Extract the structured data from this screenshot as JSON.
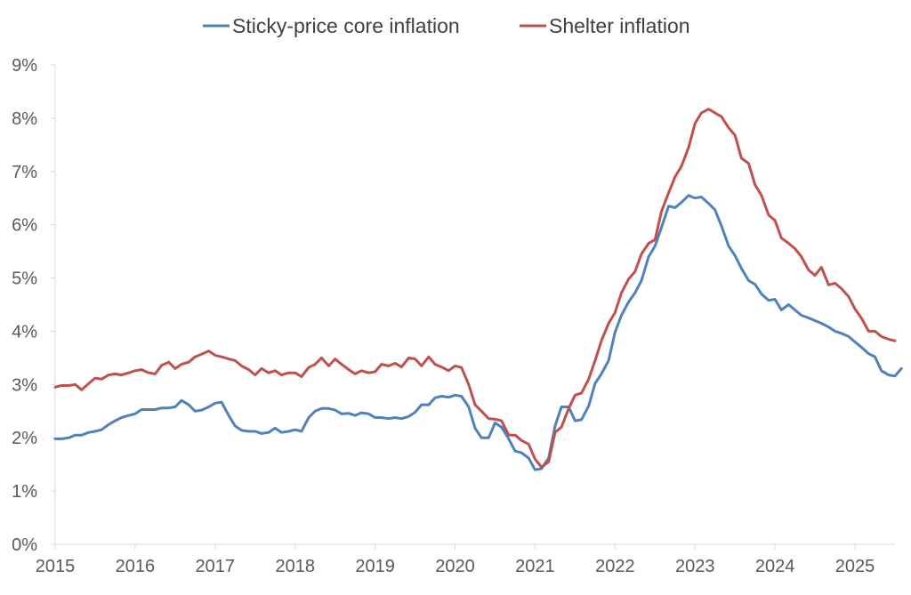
{
  "chart_data": {
    "type": "line",
    "title": "",
    "xlabel": "",
    "ylabel": "",
    "xlim": [
      2015.0,
      2025.5
    ],
    "ylim": [
      0,
      9
    ],
    "grid": false,
    "legend_position": "top-center",
    "x_ticks": [
      "2015",
      "2016",
      "2017",
      "2018",
      "2019",
      "2020",
      "2021",
      "2022",
      "2023",
      "2024",
      "2025"
    ],
    "y_ticks": [
      "0%",
      "1%",
      "2%",
      "3%",
      "4%",
      "5%",
      "6%",
      "7%",
      "8%",
      "9%"
    ],
    "series": [
      {
        "name": "Sticky-price core inflation",
        "color": "#4f81bd",
        "points": [
          [
            2015.0,
            1.98
          ],
          [
            2015.08,
            1.98
          ],
          [
            2015.17,
            2.0
          ],
          [
            2015.25,
            2.05
          ],
          [
            2015.33,
            2.05
          ],
          [
            2015.42,
            2.1
          ],
          [
            2015.5,
            2.12
          ],
          [
            2015.58,
            2.15
          ],
          [
            2015.67,
            2.25
          ],
          [
            2015.75,
            2.32
          ],
          [
            2015.83,
            2.38
          ],
          [
            2015.92,
            2.42
          ],
          [
            2016.0,
            2.45
          ],
          [
            2016.08,
            2.53
          ],
          [
            2016.17,
            2.53
          ],
          [
            2016.25,
            2.53
          ],
          [
            2016.33,
            2.56
          ],
          [
            2016.42,
            2.56
          ],
          [
            2016.5,
            2.58
          ],
          [
            2016.58,
            2.7
          ],
          [
            2016.67,
            2.62
          ],
          [
            2016.75,
            2.5
          ],
          [
            2016.83,
            2.52
          ],
          [
            2016.92,
            2.58
          ],
          [
            2017.0,
            2.65
          ],
          [
            2017.08,
            2.67
          ],
          [
            2017.17,
            2.42
          ],
          [
            2017.25,
            2.22
          ],
          [
            2017.33,
            2.14
          ],
          [
            2017.42,
            2.12
          ],
          [
            2017.5,
            2.12
          ],
          [
            2017.58,
            2.08
          ],
          [
            2017.67,
            2.1
          ],
          [
            2017.75,
            2.18
          ],
          [
            2017.83,
            2.1
          ],
          [
            2017.92,
            2.12
          ],
          [
            2018.0,
            2.15
          ],
          [
            2018.08,
            2.12
          ],
          [
            2018.17,
            2.38
          ],
          [
            2018.25,
            2.5
          ],
          [
            2018.33,
            2.55
          ],
          [
            2018.42,
            2.55
          ],
          [
            2018.5,
            2.52
          ],
          [
            2018.58,
            2.45
          ],
          [
            2018.67,
            2.46
          ],
          [
            2018.75,
            2.42
          ],
          [
            2018.83,
            2.47
          ],
          [
            2018.92,
            2.45
          ],
          [
            2019.0,
            2.38
          ],
          [
            2019.08,
            2.38
          ],
          [
            2019.17,
            2.36
          ],
          [
            2019.25,
            2.38
          ],
          [
            2019.33,
            2.36
          ],
          [
            2019.42,
            2.4
          ],
          [
            2019.5,
            2.48
          ],
          [
            2019.58,
            2.62
          ],
          [
            2019.67,
            2.62
          ],
          [
            2019.75,
            2.75
          ],
          [
            2019.83,
            2.78
          ],
          [
            2019.92,
            2.76
          ],
          [
            2020.0,
            2.8
          ],
          [
            2020.08,
            2.78
          ],
          [
            2020.17,
            2.58
          ],
          [
            2020.25,
            2.18
          ],
          [
            2020.33,
            2.0
          ],
          [
            2020.42,
            2.0
          ],
          [
            2020.5,
            2.28
          ],
          [
            2020.58,
            2.2
          ],
          [
            2020.67,
            1.98
          ],
          [
            2020.75,
            1.75
          ],
          [
            2020.83,
            1.72
          ],
          [
            2020.92,
            1.62
          ],
          [
            2021.0,
            1.4
          ],
          [
            2021.08,
            1.42
          ],
          [
            2021.17,
            1.62
          ],
          [
            2021.25,
            2.22
          ],
          [
            2021.33,
            2.58
          ],
          [
            2021.42,
            2.58
          ],
          [
            2021.5,
            2.32
          ],
          [
            2021.58,
            2.34
          ],
          [
            2021.67,
            2.6
          ],
          [
            2021.75,
            3.02
          ],
          [
            2021.83,
            3.2
          ],
          [
            2021.92,
            3.45
          ],
          [
            2022.0,
            3.98
          ],
          [
            2022.08,
            4.3
          ],
          [
            2022.17,
            4.55
          ],
          [
            2022.25,
            4.72
          ],
          [
            2022.33,
            4.95
          ],
          [
            2022.42,
            5.4
          ],
          [
            2022.5,
            5.6
          ],
          [
            2022.58,
            5.95
          ],
          [
            2022.67,
            6.35
          ],
          [
            2022.75,
            6.32
          ],
          [
            2022.83,
            6.42
          ],
          [
            2022.92,
            6.55
          ],
          [
            2023.0,
            6.5
          ],
          [
            2023.08,
            6.52
          ],
          [
            2023.17,
            6.4
          ],
          [
            2023.25,
            6.28
          ],
          [
            2023.33,
            5.98
          ],
          [
            2023.42,
            5.6
          ],
          [
            2023.5,
            5.42
          ],
          [
            2023.58,
            5.18
          ],
          [
            2023.67,
            4.95
          ],
          [
            2023.75,
            4.88
          ],
          [
            2023.83,
            4.7
          ],
          [
            2023.92,
            4.58
          ],
          [
            2024.0,
            4.6
          ],
          [
            2024.08,
            4.4
          ],
          [
            2024.17,
            4.5
          ],
          [
            2024.25,
            4.4
          ],
          [
            2024.33,
            4.3
          ],
          [
            2024.42,
            4.25
          ],
          [
            2024.5,
            4.2
          ],
          [
            2024.58,
            4.15
          ],
          [
            2024.67,
            4.08
          ],
          [
            2024.75,
            4.0
          ],
          [
            2024.83,
            3.96
          ],
          [
            2024.92,
            3.9
          ],
          [
            2025.0,
            3.8
          ],
          [
            2025.08,
            3.7
          ],
          [
            2025.17,
            3.58
          ],
          [
            2025.25,
            3.52
          ],
          [
            2025.33,
            3.26
          ],
          [
            2025.42,
            3.18
          ],
          [
            2025.5,
            3.16
          ],
          [
            2025.58,
            3.3
          ]
        ]
      },
      {
        "name": "Shelter inflation",
        "color": "#c0504d",
        "points": [
          [
            2015.0,
            2.95
          ],
          [
            2015.08,
            2.98
          ],
          [
            2015.17,
            2.98
          ],
          [
            2015.25,
            3.0
          ],
          [
            2015.33,
            2.9
          ],
          [
            2015.42,
            3.02
          ],
          [
            2015.5,
            3.12
          ],
          [
            2015.58,
            3.1
          ],
          [
            2015.67,
            3.18
          ],
          [
            2015.75,
            3.2
          ],
          [
            2015.83,
            3.18
          ],
          [
            2015.92,
            3.22
          ],
          [
            2016.0,
            3.26
          ],
          [
            2016.08,
            3.28
          ],
          [
            2016.17,
            3.22
          ],
          [
            2016.25,
            3.2
          ],
          [
            2016.33,
            3.36
          ],
          [
            2016.42,
            3.42
          ],
          [
            2016.5,
            3.3
          ],
          [
            2016.58,
            3.38
          ],
          [
            2016.67,
            3.42
          ],
          [
            2016.75,
            3.52
          ],
          [
            2016.83,
            3.57
          ],
          [
            2016.92,
            3.63
          ],
          [
            2017.0,
            3.55
          ],
          [
            2017.08,
            3.52
          ],
          [
            2017.17,
            3.48
          ],
          [
            2017.25,
            3.45
          ],
          [
            2017.33,
            3.35
          ],
          [
            2017.42,
            3.28
          ],
          [
            2017.5,
            3.18
          ],
          [
            2017.58,
            3.3
          ],
          [
            2017.67,
            3.22
          ],
          [
            2017.75,
            3.26
          ],
          [
            2017.83,
            3.18
          ],
          [
            2017.92,
            3.22
          ],
          [
            2018.0,
            3.22
          ],
          [
            2018.08,
            3.15
          ],
          [
            2018.17,
            3.32
          ],
          [
            2018.25,
            3.38
          ],
          [
            2018.33,
            3.5
          ],
          [
            2018.42,
            3.35
          ],
          [
            2018.5,
            3.48
          ],
          [
            2018.58,
            3.38
          ],
          [
            2018.67,
            3.28
          ],
          [
            2018.75,
            3.2
          ],
          [
            2018.83,
            3.26
          ],
          [
            2018.92,
            3.22
          ],
          [
            2019.0,
            3.24
          ],
          [
            2019.08,
            3.38
          ],
          [
            2019.17,
            3.35
          ],
          [
            2019.25,
            3.4
          ],
          [
            2019.33,
            3.33
          ],
          [
            2019.42,
            3.5
          ],
          [
            2019.5,
            3.48
          ],
          [
            2019.58,
            3.35
          ],
          [
            2019.67,
            3.52
          ],
          [
            2019.75,
            3.38
          ],
          [
            2019.83,
            3.33
          ],
          [
            2019.92,
            3.26
          ],
          [
            2020.0,
            3.35
          ],
          [
            2020.08,
            3.32
          ],
          [
            2020.17,
            3.0
          ],
          [
            2020.25,
            2.62
          ],
          [
            2020.33,
            2.5
          ],
          [
            2020.42,
            2.36
          ],
          [
            2020.5,
            2.35
          ],
          [
            2020.58,
            2.32
          ],
          [
            2020.67,
            2.05
          ],
          [
            2020.75,
            2.05
          ],
          [
            2020.83,
            1.95
          ],
          [
            2020.92,
            1.88
          ],
          [
            2021.0,
            1.6
          ],
          [
            2021.08,
            1.45
          ],
          [
            2021.17,
            1.55
          ],
          [
            2021.25,
            2.1
          ],
          [
            2021.33,
            2.2
          ],
          [
            2021.42,
            2.55
          ],
          [
            2021.5,
            2.8
          ],
          [
            2021.58,
            2.84
          ],
          [
            2021.67,
            3.1
          ],
          [
            2021.75,
            3.45
          ],
          [
            2021.83,
            3.82
          ],
          [
            2021.92,
            4.15
          ],
          [
            2022.0,
            4.35
          ],
          [
            2022.08,
            4.72
          ],
          [
            2022.17,
            4.98
          ],
          [
            2022.25,
            5.12
          ],
          [
            2022.33,
            5.45
          ],
          [
            2022.42,
            5.65
          ],
          [
            2022.5,
            5.72
          ],
          [
            2022.58,
            6.25
          ],
          [
            2022.67,
            6.6
          ],
          [
            2022.75,
            6.9
          ],
          [
            2022.83,
            7.1
          ],
          [
            2022.92,
            7.45
          ],
          [
            2023.0,
            7.9
          ],
          [
            2023.08,
            8.1
          ],
          [
            2023.17,
            8.17
          ],
          [
            2023.25,
            8.1
          ],
          [
            2023.33,
            8.03
          ],
          [
            2023.42,
            7.82
          ],
          [
            2023.5,
            7.68
          ],
          [
            2023.58,
            7.25
          ],
          [
            2023.67,
            7.15
          ],
          [
            2023.75,
            6.75
          ],
          [
            2023.83,
            6.55
          ],
          [
            2023.92,
            6.18
          ],
          [
            2024.0,
            6.08
          ],
          [
            2024.08,
            5.75
          ],
          [
            2024.17,
            5.65
          ],
          [
            2024.25,
            5.55
          ],
          [
            2024.33,
            5.4
          ],
          [
            2024.42,
            5.15
          ],
          [
            2024.5,
            5.05
          ],
          [
            2024.58,
            5.2
          ],
          [
            2024.67,
            4.87
          ],
          [
            2024.75,
            4.9
          ],
          [
            2024.83,
            4.8
          ],
          [
            2024.92,
            4.65
          ],
          [
            2025.0,
            4.42
          ],
          [
            2025.08,
            4.25
          ],
          [
            2025.17,
            4.0
          ],
          [
            2025.25,
            4.0
          ],
          [
            2025.33,
            3.9
          ],
          [
            2025.42,
            3.85
          ],
          [
            2025.5,
            3.82
          ]
        ]
      }
    ]
  }
}
